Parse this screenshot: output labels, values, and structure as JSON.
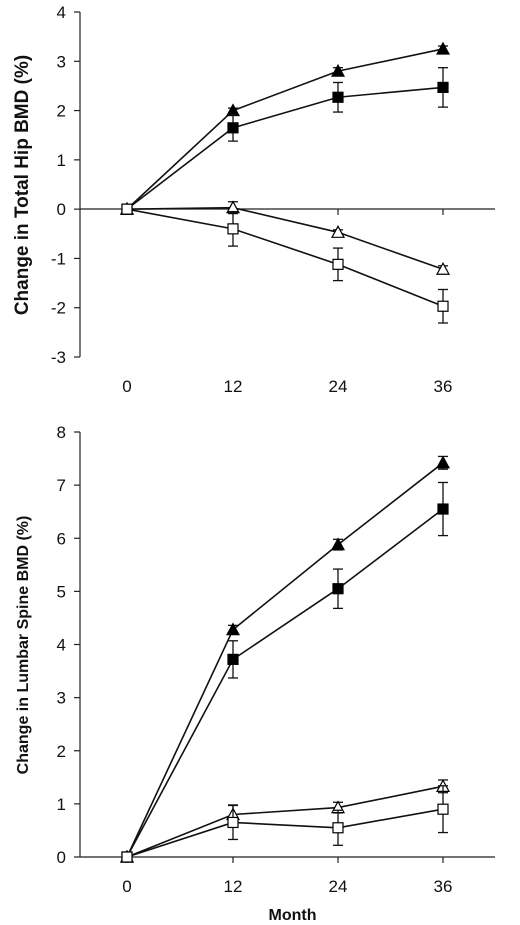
{
  "chart_data": [
    {
      "type": "line",
      "title": "",
      "xlabel": "",
      "ylabel": "Change in Total Hip BMD (%)",
      "x": [
        0,
        12,
        24,
        36
      ],
      "xticks": [
        "0",
        "12",
        "24",
        "36"
      ],
      "ylim": [
        -3,
        4
      ],
      "yticks": [
        -3,
        -2,
        -1,
        0,
        1,
        2,
        3,
        4
      ],
      "grid": false,
      "series": [
        {
          "marker": "filled-triangle",
          "values": [
            0,
            2.0,
            2.8,
            3.25
          ],
          "error": [
            0,
            0.05,
            0.07,
            0.06
          ]
        },
        {
          "marker": "filled-square",
          "values": [
            0,
            1.65,
            2.27,
            2.47
          ],
          "error": [
            0,
            0.27,
            0.3,
            0.4
          ]
        },
        {
          "marker": "open-triangle",
          "values": [
            0,
            0.03,
            -0.47,
            -1.22
          ],
          "error": [
            0,
            0.12,
            0.05,
            0.07
          ]
        },
        {
          "marker": "open-square",
          "values": [
            0,
            -0.4,
            -1.12,
            -1.97
          ],
          "error": [
            0,
            0.35,
            0.33,
            0.34
          ]
        }
      ]
    },
    {
      "type": "line",
      "title": "",
      "xlabel": "Month",
      "ylabel": "Change in Lumbar Spine BMD (%)",
      "x": [
        0,
        12,
        24,
        36
      ],
      "xticks": [
        "0",
        "12",
        "24",
        "36"
      ],
      "ylim": [
        0,
        8
      ],
      "yticks": [
        0,
        1,
        2,
        3,
        4,
        5,
        6,
        7,
        8
      ],
      "grid": false,
      "series": [
        {
          "marker": "filled-triangle",
          "values": [
            0,
            4.28,
            5.88,
            7.42
          ],
          "error": [
            0,
            0.08,
            0.1,
            0.12
          ]
        },
        {
          "marker": "filled-square",
          "values": [
            0,
            3.72,
            5.05,
            6.55
          ],
          "error": [
            0,
            0.35,
            0.37,
            0.5
          ]
        },
        {
          "marker": "open-triangle",
          "values": [
            0,
            0.8,
            0.93,
            1.33
          ],
          "error": [
            0,
            0.18,
            0.1,
            0.12
          ]
        },
        {
          "marker": "open-square",
          "values": [
            0,
            0.65,
            0.55,
            0.9
          ],
          "error": [
            0,
            0.32,
            0.33,
            0.44
          ]
        }
      ]
    }
  ]
}
